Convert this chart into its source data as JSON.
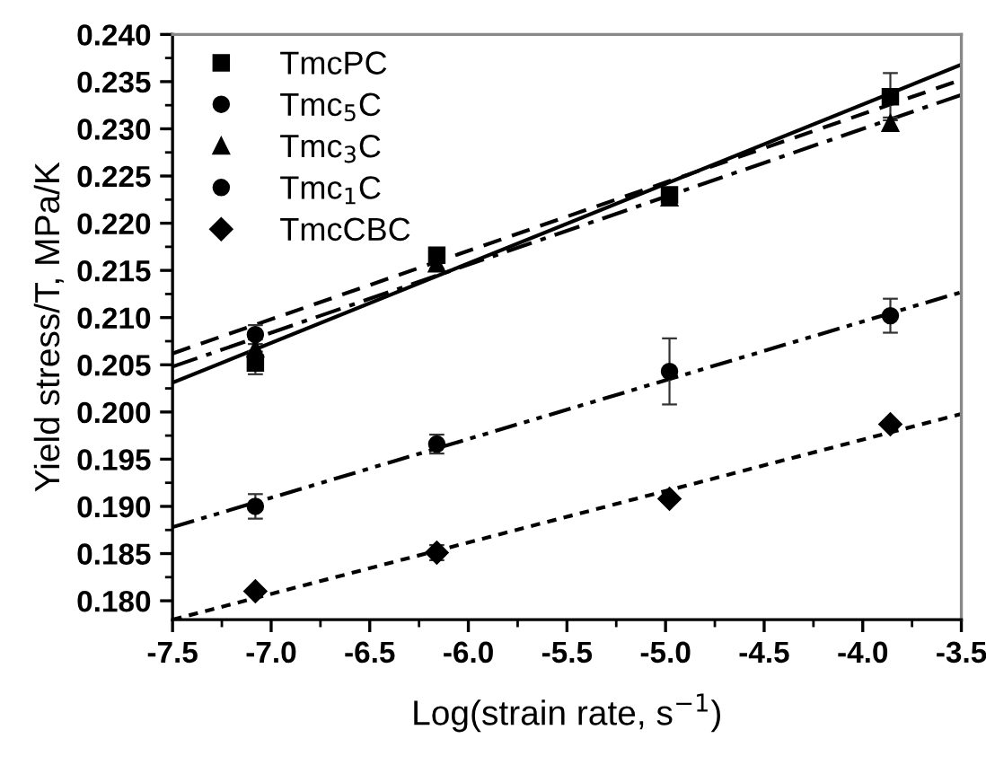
{
  "chart_data": {
    "type": "scatter",
    "xlabel": "Log(strain rate, s$^{−1}$)",
    "ylabel": "Yield stress/T, MPa/K",
    "xlim": [
      -7.5,
      -3.5
    ],
    "ylim": [
      0.178,
      0.24
    ],
    "xticks": [
      {
        "value": -7.5,
        "label": "-7.5"
      },
      {
        "value": -7.0,
        "label": "-7.0"
      },
      {
        "value": -6.5,
        "label": "-6.5"
      },
      {
        "value": -6.0,
        "label": "-6.0"
      },
      {
        "value": -5.5,
        "label": "-5.5"
      },
      {
        "value": -5.0,
        "label": "-5.0"
      },
      {
        "value": -4.5,
        "label": "-4.5"
      },
      {
        "value": -4.0,
        "label": "-4.0"
      },
      {
        "value": -3.5,
        "label": "-3.5"
      }
    ],
    "yticks": [
      {
        "value": 0.18,
        "label": "0.180"
      },
      {
        "value": 0.185,
        "label": "0.185"
      },
      {
        "value": 0.19,
        "label": "0.190"
      },
      {
        "value": 0.195,
        "label": "0.195"
      },
      {
        "value": 0.2,
        "label": "0.200"
      },
      {
        "value": 0.205,
        "label": "0.205"
      },
      {
        "value": 0.21,
        "label": "0.210"
      },
      {
        "value": 0.215,
        "label": "0.215"
      },
      {
        "value": 0.22,
        "label": "0.220"
      },
      {
        "value": 0.225,
        "label": "0.225"
      },
      {
        "value": 0.23,
        "label": "0.230"
      },
      {
        "value": 0.235,
        "label": "0.235"
      },
      {
        "value": 0.24,
        "label": "0.240"
      }
    ],
    "grid": false,
    "legend": "top left",
    "series": [
      {
        "name": "TmcPC",
        "color": "#000000",
        "marker": "square",
        "x": [
          -7.08,
          -6.16,
          -4.98,
          -3.86
        ],
        "values": [
          0.2052,
          0.2166,
          0.223,
          0.2334
        ],
        "errors": [
          0.0012,
          0.0005,
          0.0005,
          0.0025
        ]
      },
      {
        "name": "Tmc$_{5}$C",
        "color": "#000000",
        "marker": "circle",
        "x": [
          -7.08
        ],
        "values": [
          0.2082
        ],
        "errors": [
          0.001
        ]
      },
      {
        "name": "Tmc$_{3}$C",
        "color": "#000000",
        "marker": "triangle",
        "x": [
          -7.08,
          -6.16,
          -4.98,
          -3.86
        ],
        "values": [
          0.2067,
          0.2157,
          0.2227,
          0.2306
        ],
        "errors": [
          0.001,
          0.0005,
          0.0005,
          0.0006
        ]
      },
      {
        "name": "Tmc$_{1}$C",
        "color": "#000000",
        "marker": "circle",
        "x": [
          -7.08,
          -6.16,
          -4.98,
          -3.86
        ],
        "values": [
          0.19,
          0.1966,
          0.2043,
          0.2102
        ],
        "errors": [
          0.0013,
          0.001,
          0.0035,
          0.0018
        ]
      },
      {
        "name": "TmcCBC",
        "color": "#000000",
        "marker": "diamond",
        "x": [
          -7.08,
          -6.16,
          -4.98,
          -3.86
        ],
        "values": [
          0.181,
          0.1851,
          0.1908,
          0.1987
        ],
        "errors": [
          null,
          0.0008,
          null,
          null
        ]
      },
      {
        "type": "line",
        "color": "#000000",
        "line_style": "solid",
        "x": [
          -7.5,
          -3.5
        ],
        "values": [
          0.2031,
          0.2368
        ]
      },
      {
        "type": "line",
        "color": "#000000",
        "line_style": "dashed",
        "x": [
          -7.5,
          -3.5
        ],
        "values": [
          0.2062,
          0.2352
        ]
      },
      {
        "type": "line",
        "color": "#000000",
        "line_style": "dashdot",
        "x": [
          -7.5,
          -3.5
        ],
        "values": [
          0.2048,
          0.2336
        ]
      },
      {
        "type": "line",
        "color": "#000000",
        "line_style": "dashdotdot",
        "x": [
          -7.5,
          -3.5
        ],
        "values": [
          0.1878,
          0.2127
        ]
      },
      {
        "type": "line",
        "color": "#000000",
        "line_style": "dotted",
        "x": [
          -7.5,
          -3.5
        ],
        "values": [
          0.178,
          0.1998
        ]
      }
    ]
  }
}
